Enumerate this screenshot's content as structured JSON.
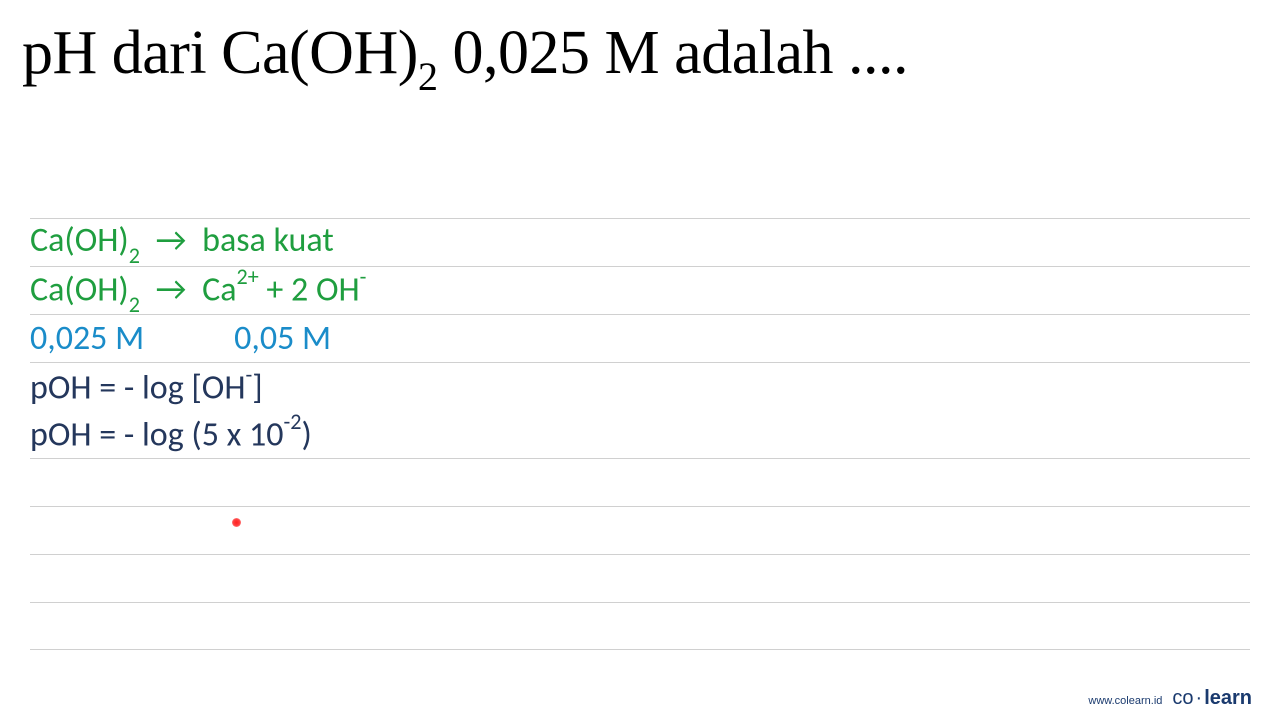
{
  "title": {
    "prefix": "pH dari Ca(OH)",
    "subscript": "2",
    "suffix": " 0,025 M adalah ...."
  },
  "lines": {
    "l1": {
      "compound_prefix": "Ca(OH)",
      "compound_sub": "2",
      "arrow": "→",
      "description": "basa kuat",
      "color": "#1f9e3f"
    },
    "l2": {
      "lhs_prefix": "Ca(OH)",
      "lhs_sub": "2",
      "arrow": "→",
      "rhs_ion1": "Ca",
      "rhs_ion1_sup": "2+",
      "plus": " + ",
      "rhs_coef": "2 ",
      "rhs_ion2": "OH",
      "rhs_ion2_sup": "-",
      "color": "#1f9e3f"
    },
    "l3": {
      "left_value": "0,025 M",
      "right_value": "0,05 M",
      "color": "#1a8cc9"
    },
    "l4": {
      "text_prefix": "pOH = - log [OH",
      "sup": "-",
      "text_suffix": "]",
      "color": "#24375c"
    },
    "l5": {
      "text_prefix": "pOH = - log (5 x 10",
      "sup": "-2",
      "text_suffix": ")",
      "color": "#24375c"
    }
  },
  "styling": {
    "title_fontsize": 62,
    "line_fontsize": 34,
    "line_height": 48,
    "rule_color": "#d0d0d0",
    "green": "#1f9e3f",
    "blue": "#1a8cc9",
    "navy": "#24375c",
    "background": "#ffffff",
    "laser_color": "#ff2020"
  },
  "footer": {
    "url": "www.colearn.id",
    "logo_part1": "co",
    "logo_dot": "·",
    "logo_part2": "learn"
  }
}
